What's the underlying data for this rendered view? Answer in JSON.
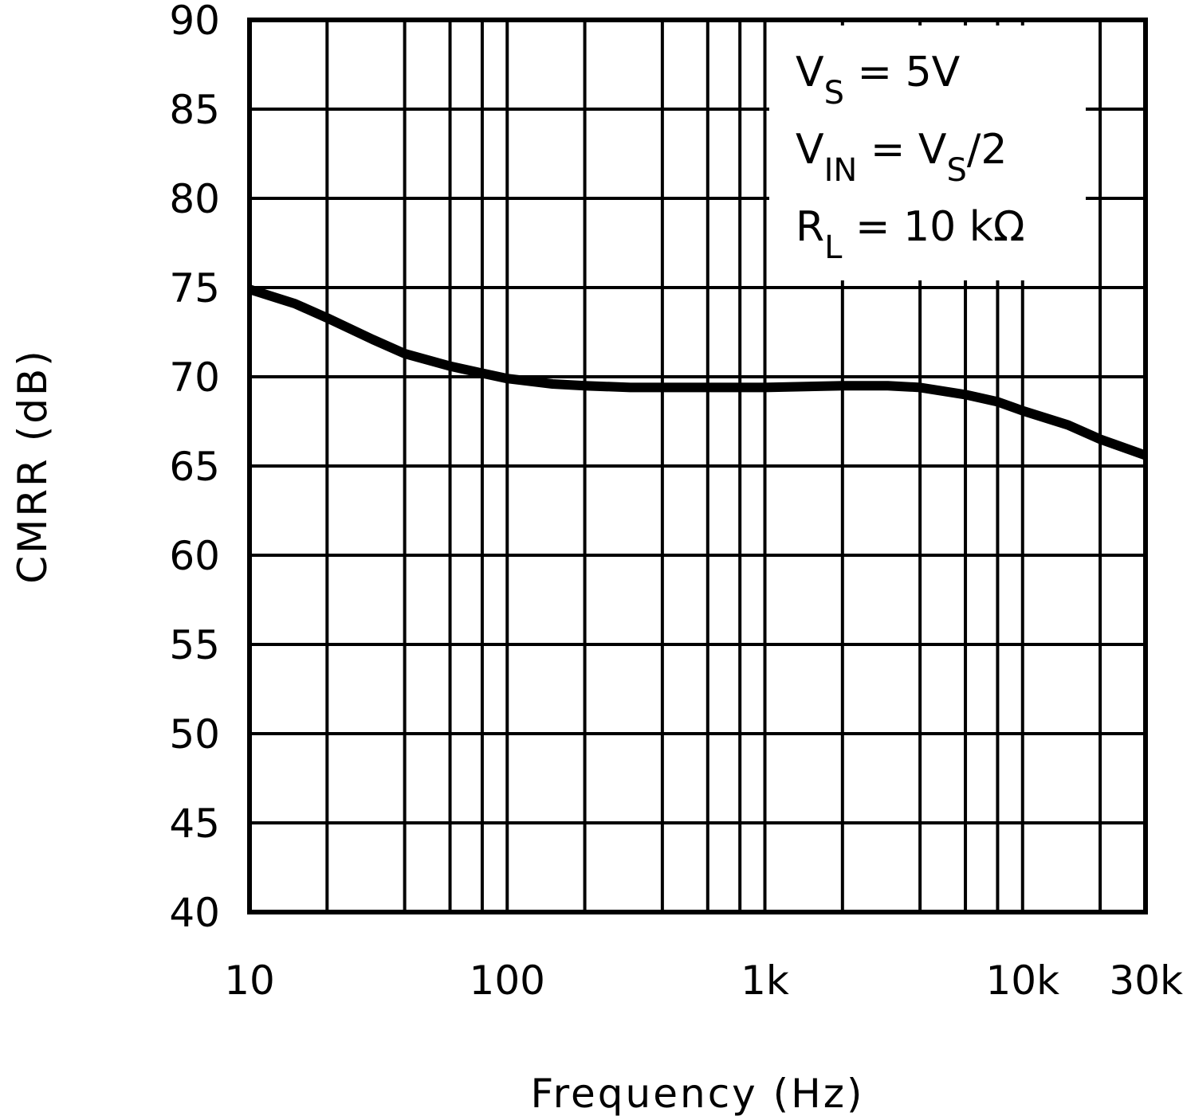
{
  "chart_data": {
    "type": "line",
    "title": "",
    "xlabel": "Frequency (Hz)",
    "ylabel": "CMRR (dB)",
    "xscale": "log",
    "xlim": [
      10,
      30000
    ],
    "ylim": [
      40,
      90
    ],
    "grid": true,
    "x_tick_labels": [
      "10",
      "100",
      "1k",
      "10k",
      "30k"
    ],
    "x_tick_values": [
      10,
      100,
      1000,
      10000,
      30000
    ],
    "y_tick_labels": [
      "90",
      "85",
      "80",
      "75",
      "70",
      "65",
      "60",
      "55",
      "50",
      "45",
      "40"
    ],
    "y_tick_values": [
      90,
      85,
      80,
      75,
      70,
      65,
      60,
      55,
      50,
      45,
      40
    ],
    "x_gridlines": [
      20,
      40,
      60,
      80,
      100,
      200,
      400,
      600,
      800,
      1000,
      2000,
      4000,
      6000,
      8000,
      10000,
      20000
    ],
    "annotations": [
      {
        "main": "V",
        "sub": "S",
        "rest": " =  5V"
      },
      {
        "main": "V",
        "sub": "IN",
        "rest": " =  V",
        "sub2": "S",
        "rest2": "/2"
      },
      {
        "main": "R",
        "sub": "L",
        "rest": " =  10 kΩ"
      }
    ],
    "series": [
      {
        "name": "CMRR",
        "x": [
          10,
          15,
          20,
          30,
          40,
          60,
          80,
          100,
          150,
          200,
          300,
          400,
          600,
          1000,
          2000,
          3000,
          4000,
          6000,
          8000,
          10000,
          15000,
          20000,
          30000
        ],
        "y": [
          74.9,
          74.1,
          73.3,
          72.1,
          71.3,
          70.6,
          70.2,
          69.9,
          69.6,
          69.5,
          69.4,
          69.4,
          69.4,
          69.4,
          69.5,
          69.5,
          69.4,
          69.0,
          68.6,
          68.1,
          67.3,
          66.5,
          65.6
        ]
      }
    ]
  }
}
